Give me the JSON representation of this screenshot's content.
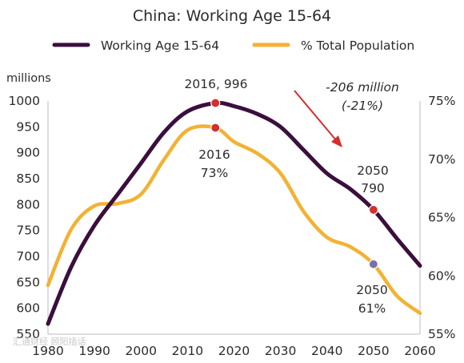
{
  "chart_data": {
    "type": "line",
    "title": "China: Working Age 15-64",
    "y_left_unit": "millions",
    "x": [
      1980,
      1985,
      1990,
      1995,
      2000,
      2005,
      2010,
      2016,
      2020,
      2025,
      2030,
      2035,
      2040,
      2045,
      2050,
      2055,
      2060
    ],
    "x_ticks": [
      1980,
      1990,
      2000,
      2010,
      2020,
      2030,
      2040,
      2050,
      2060
    ],
    "xlim": [
      1980,
      2060
    ],
    "y_left_ticks": [
      550,
      600,
      650,
      700,
      750,
      800,
      850,
      900,
      950,
      1000
    ],
    "y_left_lim": [
      550,
      1000
    ],
    "y_right_ticks": [
      "55%",
      "60%",
      "65%",
      "70%",
      "75%"
    ],
    "y_right_lim": [
      55,
      75
    ],
    "series": [
      {
        "name": "Working Age 15-64",
        "axis": "left",
        "color": "#3b0f3d",
        "values": [
          570,
          680,
          760,
          820,
          880,
          940,
          980,
          996,
          990,
          975,
          950,
          905,
          860,
          830,
          790,
          735,
          682
        ]
      },
      {
        "name": "% Total Population",
        "axis": "right",
        "color": "#f2b233",
        "values": [
          59.2,
          64.0,
          66.0,
          66.2,
          67.0,
          70.0,
          72.5,
          72.7,
          71.5,
          70.5,
          68.8,
          65.5,
          63.3,
          62.5,
          61.0,
          58.3,
          56.8
        ]
      }
    ],
    "highlight_points": [
      {
        "series": 0,
        "x": 2016,
        "color": "#d62d2d"
      },
      {
        "series": 1,
        "x": 2016,
        "color": "#d62d2d"
      },
      {
        "series": 0,
        "x": 2050,
        "color": "#d62d2d"
      },
      {
        "series": 1,
        "x": 2050,
        "color": "#7b6fa8"
      }
    ],
    "annotations": {
      "peak_work": "2016, 996",
      "peak_pct_year": "2016",
      "peak_pct_value": "73%",
      "drop_line1": "-206 million",
      "drop_line2": "(-21%)",
      "end_work_year": "2050",
      "end_work_value": "790",
      "end_pct_year": "2050",
      "end_pct_value": "61%"
    },
    "arrow_color": "#d62d2d"
  },
  "watermark": "汇通财经 顾阳插话"
}
